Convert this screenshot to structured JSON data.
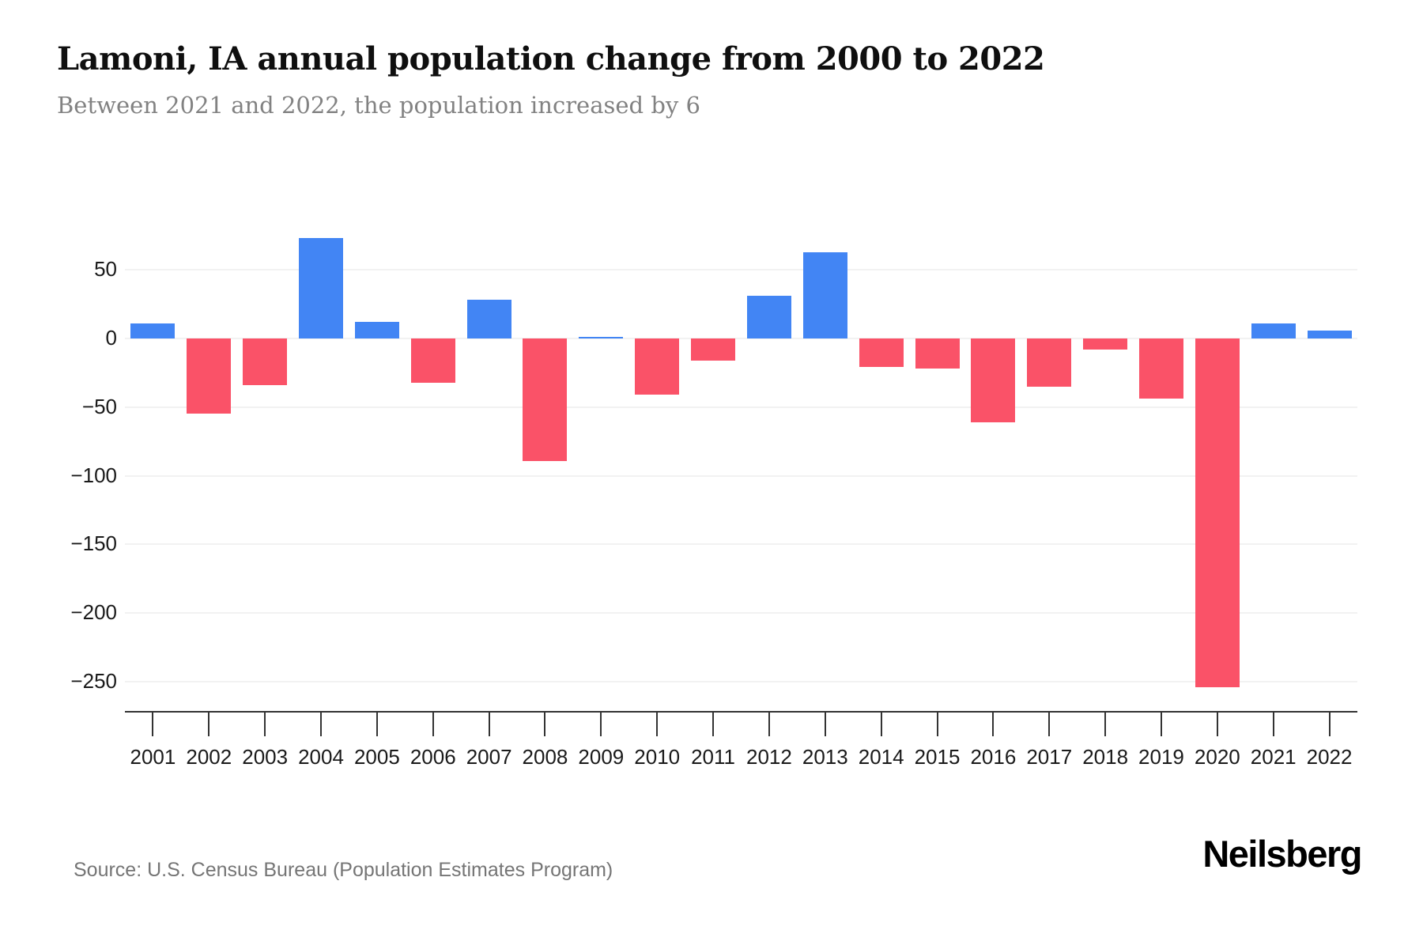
{
  "header": {
    "title": "Lamoni, IA annual population change from 2000 to 2022",
    "subtitle": "Between 2021 and 2022, the population increased by 6"
  },
  "footer": {
    "source": "Source: U.S. Census Bureau (Population Estimates Program)",
    "brand": "Neilsberg"
  },
  "chart_data": {
    "type": "bar",
    "title": "Lamoni, IA annual population change from 2000 to 2022",
    "subtitle": "Between 2021 and 2022, the population increased by 6",
    "xlabel": "",
    "ylabel": "",
    "categories": [
      "2001",
      "2002",
      "2003",
      "2004",
      "2005",
      "2006",
      "2007",
      "2008",
      "2009",
      "2010",
      "2011",
      "2012",
      "2013",
      "2014",
      "2015",
      "2016",
      "2017",
      "2018",
      "2019",
      "2020",
      "2021",
      "2022"
    ],
    "values": [
      11,
      -55,
      -34,
      73,
      12,
      -32,
      28,
      -89,
      1,
      -41,
      -16,
      31,
      63,
      -21,
      -22,
      -61,
      -35,
      -8,
      -44,
      -254,
      11,
      6
    ],
    "yticks": [
      50,
      0,
      -50,
      -100,
      -150,
      -200,
      -250
    ],
    "ylim": [
      -270,
      90
    ],
    "grid": true,
    "legend": "none",
    "positive_color": "#4285F4",
    "negative_color": "#FA5268",
    "grid_color": "#f2f2f2",
    "axis_color": "#333333",
    "label_color": "#1a1a1a"
  }
}
